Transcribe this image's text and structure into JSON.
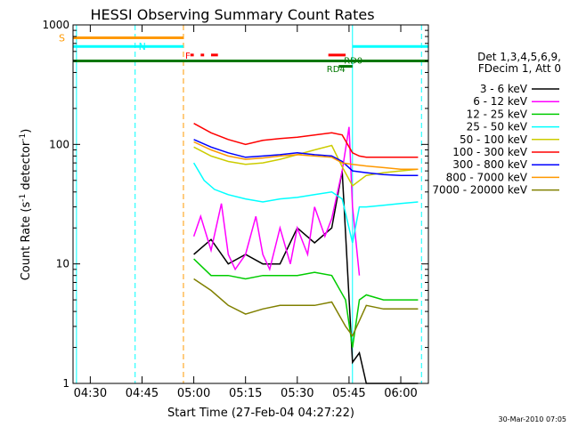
{
  "chart_data": {
    "type": "line",
    "title": "HESSI Observing Summary Count Rates",
    "xlabel": "Start Time (27-Feb-04 04:27:22)",
    "ylabel_pre": "Count Rate (s",
    "ylabel_sup": "-1",
    "ylabel_mid": " detector",
    "ylabel_post": ")",
    "y_scale": "log",
    "xlim": [
      "04:25",
      "06:08"
    ],
    "ylim": [
      1,
      1000
    ],
    "x_ticks": [
      "04:30",
      "04:45",
      "05:00",
      "05:15",
      "05:30",
      "05:45",
      "06:00"
    ],
    "y_ticks": [
      "1",
      "10",
      "100",
      "1000"
    ],
    "grid": false,
    "legend_position": "right",
    "legend_header": [
      "Det 1,3,4,5,6,9,",
      "FDecim 1, Att 0"
    ],
    "series": [
      {
        "name": "3 - 6 keV",
        "color": "#000000",
        "x": [
          "05:00",
          "05:05",
          "05:10",
          "05:15",
          "05:20",
          "05:25",
          "05:30",
          "05:35",
          "05:40",
          "05:43",
          "05:46",
          "05:48",
          "05:50",
          "05:55",
          "06:00",
          "06:05"
        ],
        "values": [
          12,
          16,
          10,
          12,
          10,
          10,
          20,
          15,
          20,
          60,
          1.5,
          1.8,
          1,
          1,
          1,
          1
        ]
      },
      {
        "name": "6 - 12 keV",
        "color": "#ff00ff",
        "x": [
          "05:00",
          "05:02",
          "05:05",
          "05:08",
          "05:10",
          "05:12",
          "05:15",
          "05:18",
          "05:20",
          "05:22",
          "05:25",
          "05:28",
          "05:30",
          "05:33",
          "05:35",
          "05:38",
          "05:40",
          "05:43",
          "05:45",
          "05:46",
          "05:48"
        ],
        "values": [
          17,
          25,
          13,
          32,
          12,
          9,
          12,
          25,
          12,
          9,
          20,
          10,
          20,
          12,
          30,
          17,
          24,
          60,
          140,
          30,
          8
        ]
      },
      {
        "name": "12 - 25 keV",
        "color": "#00cc00",
        "x": [
          "05:00",
          "05:05",
          "05:10",
          "05:15",
          "05:20",
          "05:25",
          "05:30",
          "05:35",
          "05:40",
          "05:44",
          "05:46",
          "05:48",
          "05:50",
          "05:55",
          "06:00",
          "06:05"
        ],
        "values": [
          11,
          8,
          8,
          7.5,
          8,
          8,
          8,
          8.5,
          8,
          5,
          2,
          5,
          5.5,
          5,
          5,
          5
        ]
      },
      {
        "name": "25 - 50 keV",
        "color": "#00ffff",
        "x": [
          "05:00",
          "05:03",
          "05:06",
          "05:10",
          "05:15",
          "05:20",
          "05:25",
          "05:30",
          "05:35",
          "05:40",
          "05:43",
          "05:46",
          "05:48",
          "05:50",
          "05:55",
          "06:00",
          "06:05"
        ],
        "values": [
          70,
          50,
          42,
          38,
          35,
          33,
          35,
          36,
          38,
          40,
          35,
          15,
          30,
          30,
          31,
          32,
          33
        ]
      },
      {
        "name": "50 - 100 keV",
        "color": "#cccc00",
        "x": [
          "05:00",
          "05:05",
          "05:10",
          "05:15",
          "05:20",
          "05:25",
          "05:30",
          "05:35",
          "05:40",
          "05:43",
          "05:46",
          "05:50",
          "05:55",
          "06:00",
          "06:05"
        ],
        "values": [
          95,
          80,
          72,
          68,
          70,
          75,
          82,
          90,
          98,
          65,
          45,
          55,
          58,
          60,
          62
        ]
      },
      {
        "name": "100 - 300 keV",
        "color": "#ff0000",
        "x": [
          "05:00",
          "05:05",
          "05:10",
          "05:15",
          "05:20",
          "05:25",
          "05:30",
          "05:35",
          "05:40",
          "05:43",
          "05:46",
          "05:48",
          "05:50",
          "05:55",
          "06:00",
          "06:05"
        ],
        "values": [
          150,
          125,
          110,
          100,
          108,
          112,
          115,
          120,
          125,
          120,
          85,
          80,
          78,
          78,
          78,
          78
        ]
      },
      {
        "name": "300 - 800 keV",
        "color": "#0000ff",
        "x": [
          "05:00",
          "05:05",
          "05:10",
          "05:15",
          "05:20",
          "05:25",
          "05:30",
          "05:35",
          "05:40",
          "05:43",
          "05:46",
          "05:50",
          "05:55",
          "06:00",
          "06:05"
        ],
        "values": [
          110,
          95,
          85,
          78,
          80,
          82,
          85,
          82,
          80,
          72,
          60,
          58,
          56,
          55,
          55
        ]
      },
      {
        "name": "800 - 7000 keV",
        "color": "#ff9900",
        "x": [
          "05:00",
          "05:05",
          "05:10",
          "05:15",
          "05:20",
          "05:25",
          "05:30",
          "05:35",
          "05:40",
          "05:43",
          "05:46",
          "05:50",
          "05:55",
          "06:00",
          "06:05"
        ],
        "values": [
          105,
          90,
          80,
          75,
          77,
          80,
          82,
          80,
          78,
          70,
          68,
          66,
          64,
          62,
          62
        ]
      },
      {
        "name": "7000 - 20000 keV",
        "color": "#808000",
        "x": [
          "05:00",
          "05:05",
          "05:10",
          "05:15",
          "05:20",
          "05:25",
          "05:30",
          "05:35",
          "05:40",
          "05:44",
          "05:46",
          "05:50",
          "05:55",
          "06:00",
          "06:05"
        ],
        "values": [
          7.5,
          6,
          4.5,
          3.8,
          4.2,
          4.5,
          4.5,
          4.5,
          4.8,
          3,
          2.5,
          4.5,
          4.2,
          4.2,
          4.2
        ]
      }
    ],
    "orbit_bars": [
      {
        "label": "S",
        "color": "#ff9900",
        "x_start": "04:25",
        "x_end": "04:57",
        "y": 780
      },
      {
        "label": "N",
        "color": "#00ffff",
        "x_start": "04:25",
        "x_end": "04:57",
        "y": 660
      },
      {
        "label": "",
        "color": "#00ffff",
        "x_start": "05:46",
        "x_end": "06:08",
        "y": 660
      },
      {
        "label": "",
        "color": "#007700",
        "x_start": "04:25",
        "x_end": "06:08",
        "y": 500
      }
    ],
    "flag_labels": [
      {
        "label": "F",
        "color": "#ff0000",
        "x": "04:57",
        "y": 560
      },
      {
        "label": "RD0",
        "color": "#007700",
        "x": "05:43",
        "y": 510
      },
      {
        "label": "RD4",
        "color": "#007700",
        "x": "05:38",
        "y": 430
      }
    ],
    "flag_bars": [
      {
        "color": "#ff0000",
        "x_start": "04:59",
        "x_end": "05:00",
        "y": 560
      },
      {
        "color": "#ff0000",
        "x_start": "05:02",
        "x_end": "05:03",
        "y": 560
      },
      {
        "color": "#ff0000",
        "x_start": "05:05",
        "x_end": "05:07",
        "y": 560
      },
      {
        "color": "#ff0000",
        "x_start": "05:39",
        "x_end": "05:44",
        "y": 560
      },
      {
        "color": "#007700",
        "x_start": "05:42",
        "x_end": "05:46",
        "y": 450
      }
    ],
    "vlines": [
      {
        "x": "04:26",
        "color": "#00ffff",
        "style": "solid"
      },
      {
        "x": "04:43",
        "color": "#00ffff",
        "style": "dashed"
      },
      {
        "x": "04:57",
        "color": "#ff9900",
        "style": "dashed"
      },
      {
        "x": "05:46",
        "color": "#00ffff",
        "style": "solid"
      },
      {
        "x": "06:06",
        "color": "#00ffff",
        "style": "dashed"
      }
    ],
    "footer": "30-Mar-2010 07:05"
  }
}
